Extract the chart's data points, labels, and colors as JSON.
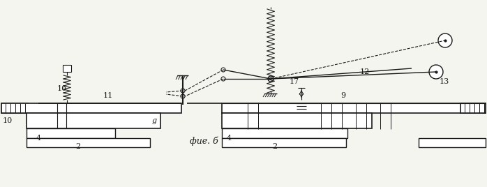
{
  "bg_color": "#f5f5f0",
  "line_color": "#1a1a1a",
  "figsize": [
    6.98,
    2.68
  ],
  "dpi": 100,
  "caption": "фие. б"
}
